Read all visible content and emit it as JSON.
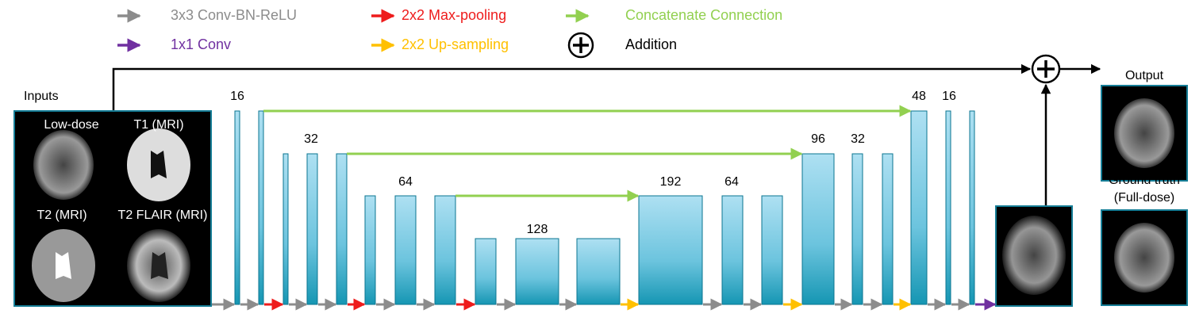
{
  "legend": [
    {
      "label": "3x3 Conv-BN-ReLU",
      "color": "#8c8c8c"
    },
    {
      "label": "2x2 Max-pooling",
      "color": "#ee1c1c"
    },
    {
      "label": "Concatenate Connection",
      "color": "#92d050"
    },
    {
      "label": "1x1 Conv",
      "color": "#7030a0"
    },
    {
      "label": "2x2 Up-sampling",
      "color": "#ffc000"
    }
  ],
  "addition": "Addition",
  "inputs": {
    "title": "Inputs",
    "images": [
      "Low-dose",
      "T1 (MRI)",
      "T2 (MRI)",
      "T2 FLAIR (MRI)"
    ]
  },
  "channels": [
    "16",
    "32",
    "64",
    "128",
    "192",
    "64",
    "96",
    "32",
    "48",
    "16"
  ],
  "output": "Output",
  "ground_truth": [
    "Ground truth",
    "(Full-dose)"
  ]
}
